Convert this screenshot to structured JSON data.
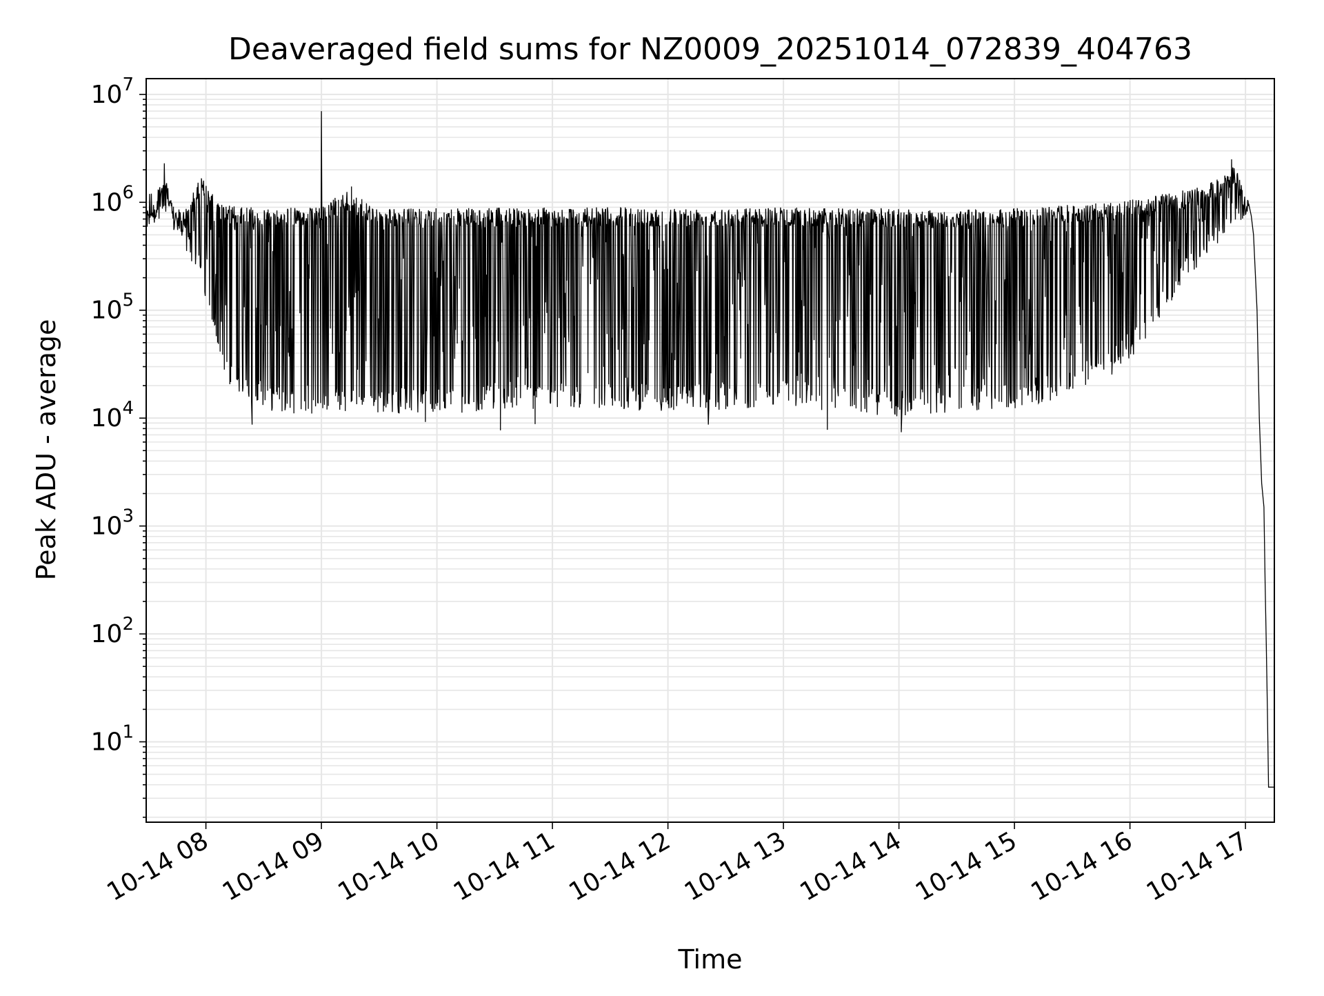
{
  "chart_data": {
    "type": "line",
    "title": "Deaveraged field sums for NZ0009_20251014_072839_404763",
    "xlabel": "Time",
    "ylabel": "Peak ADU - average",
    "yscale": "log",
    "ylim": [
      1.8,
      14000000
    ],
    "xlim_hours": [
      7.483,
      17.25
    ],
    "x_ticks": [
      {
        "hour": 8,
        "label": "10-14 08"
      },
      {
        "hour": 9,
        "label": "10-14 09"
      },
      {
        "hour": 10,
        "label": "10-14 10"
      },
      {
        "hour": 11,
        "label": "10-14 11"
      },
      {
        "hour": 12,
        "label": "10-14 12"
      },
      {
        "hour": 13,
        "label": "10-14 13"
      },
      {
        "hour": 14,
        "label": "10-14 14"
      },
      {
        "hour": 15,
        "label": "10-14 15"
      },
      {
        "hour": 16,
        "label": "10-14 16"
      },
      {
        "hour": 17,
        "label": "10-14 17"
      }
    ],
    "y_ticks": [
      {
        "exp": 1,
        "label": "10",
        "sup": "1"
      },
      {
        "exp": 2,
        "label": "10",
        "sup": "2"
      },
      {
        "exp": 3,
        "label": "10",
        "sup": "3"
      },
      {
        "exp": 4,
        "label": "10",
        "sup": "4"
      },
      {
        "exp": 5,
        "label": "10",
        "sup": "5"
      },
      {
        "exp": 6,
        "label": "10",
        "sup": "6"
      },
      {
        "exp": 7,
        "label": "10",
        "sup": "7"
      }
    ],
    "grid": true,
    "series": [
      {
        "name": "peak_adu",
        "color": "#000000",
        "upper_envelope": [
          [
            7.48,
            850000
          ],
          [
            7.55,
            900000
          ],
          [
            7.6,
            1500000
          ],
          [
            7.65,
            2000000
          ],
          [
            7.7,
            1000000
          ],
          [
            7.8,
            800000
          ],
          [
            7.9,
            1300000
          ],
          [
            7.95,
            1800000
          ],
          [
            8.0,
            1500000
          ],
          [
            8.1,
            1000000
          ],
          [
            8.3,
            900000
          ],
          [
            8.5,
            900000
          ],
          [
            9.0,
            900000
          ],
          [
            9.2,
            1300000
          ],
          [
            9.5,
            880000
          ],
          [
            10.0,
            880000
          ],
          [
            11.0,
            900000
          ],
          [
            12.0,
            900000
          ],
          [
            13.0,
            900000
          ],
          [
            14.0,
            880000
          ],
          [
            14.5,
            850000
          ],
          [
            15.0,
            880000
          ],
          [
            15.5,
            950000
          ],
          [
            16.0,
            1050000
          ],
          [
            16.3,
            1200000
          ],
          [
            16.6,
            1400000
          ],
          [
            16.8,
            1700000
          ],
          [
            16.9,
            2300000
          ],
          [
            17.0,
            1200000
          ],
          [
            17.03,
            1000000
          ]
        ],
        "lower_envelope": [
          [
            7.48,
            750000
          ],
          [
            7.6,
            700000
          ],
          [
            7.7,
            550000
          ],
          [
            7.8,
            400000
          ],
          [
            7.9,
            250000
          ],
          [
            8.0,
            100000
          ],
          [
            8.1,
            40000
          ],
          [
            8.2,
            20000
          ],
          [
            8.3,
            16000
          ],
          [
            8.5,
            12000
          ],
          [
            8.7,
            11000
          ],
          [
            9.0,
            11000
          ],
          [
            9.5,
            11000
          ],
          [
            10.0,
            11000
          ],
          [
            10.5,
            11500
          ],
          [
            11.0,
            12000
          ],
          [
            11.5,
            12000
          ],
          [
            12.0,
            11500
          ],
          [
            12.5,
            12000
          ],
          [
            13.0,
            13000
          ],
          [
            13.5,
            11000
          ],
          [
            14.0,
            10000
          ],
          [
            14.5,
            11500
          ],
          [
            15.0,
            12000
          ],
          [
            15.3,
            14000
          ],
          [
            15.6,
            19000
          ],
          [
            15.9,
            27000
          ],
          [
            16.1,
            45000
          ],
          [
            16.3,
            90000
          ],
          [
            16.5,
            200000
          ],
          [
            16.7,
            350000
          ],
          [
            16.9,
            550000
          ],
          [
            17.0,
            750000
          ],
          [
            17.03,
            900000
          ]
        ],
        "spikes": [
          {
            "hour": 9.0,
            "value": 7000000
          },
          {
            "hour": 7.64,
            "value": 2300000
          },
          {
            "hour": 16.88,
            "value": 2500000
          },
          {
            "hour": 9.26,
            "value": 1400000
          },
          {
            "hour": 8.4,
            "value": 8700
          },
          {
            "hour": 9.9,
            "value": 9200
          },
          {
            "hour": 10.55,
            "value": 7700
          },
          {
            "hour": 10.85,
            "value": 8800
          },
          {
            "hour": 12.35,
            "value": 8700
          },
          {
            "hour": 13.38,
            "value": 7800
          },
          {
            "hour": 14.02,
            "value": 7400
          }
        ],
        "tail": [
          [
            17.03,
            950000
          ],
          [
            17.05,
            750000
          ],
          [
            17.07,
            500000
          ],
          [
            17.1,
            100000
          ],
          [
            17.12,
            10000
          ],
          [
            17.14,
            2500
          ],
          [
            17.16,
            1500
          ],
          [
            17.17,
            300
          ],
          [
            17.18,
            80
          ],
          [
            17.19,
            20
          ],
          [
            17.2,
            3.8
          ],
          [
            17.25,
            3.8
          ]
        ]
      }
    ]
  }
}
